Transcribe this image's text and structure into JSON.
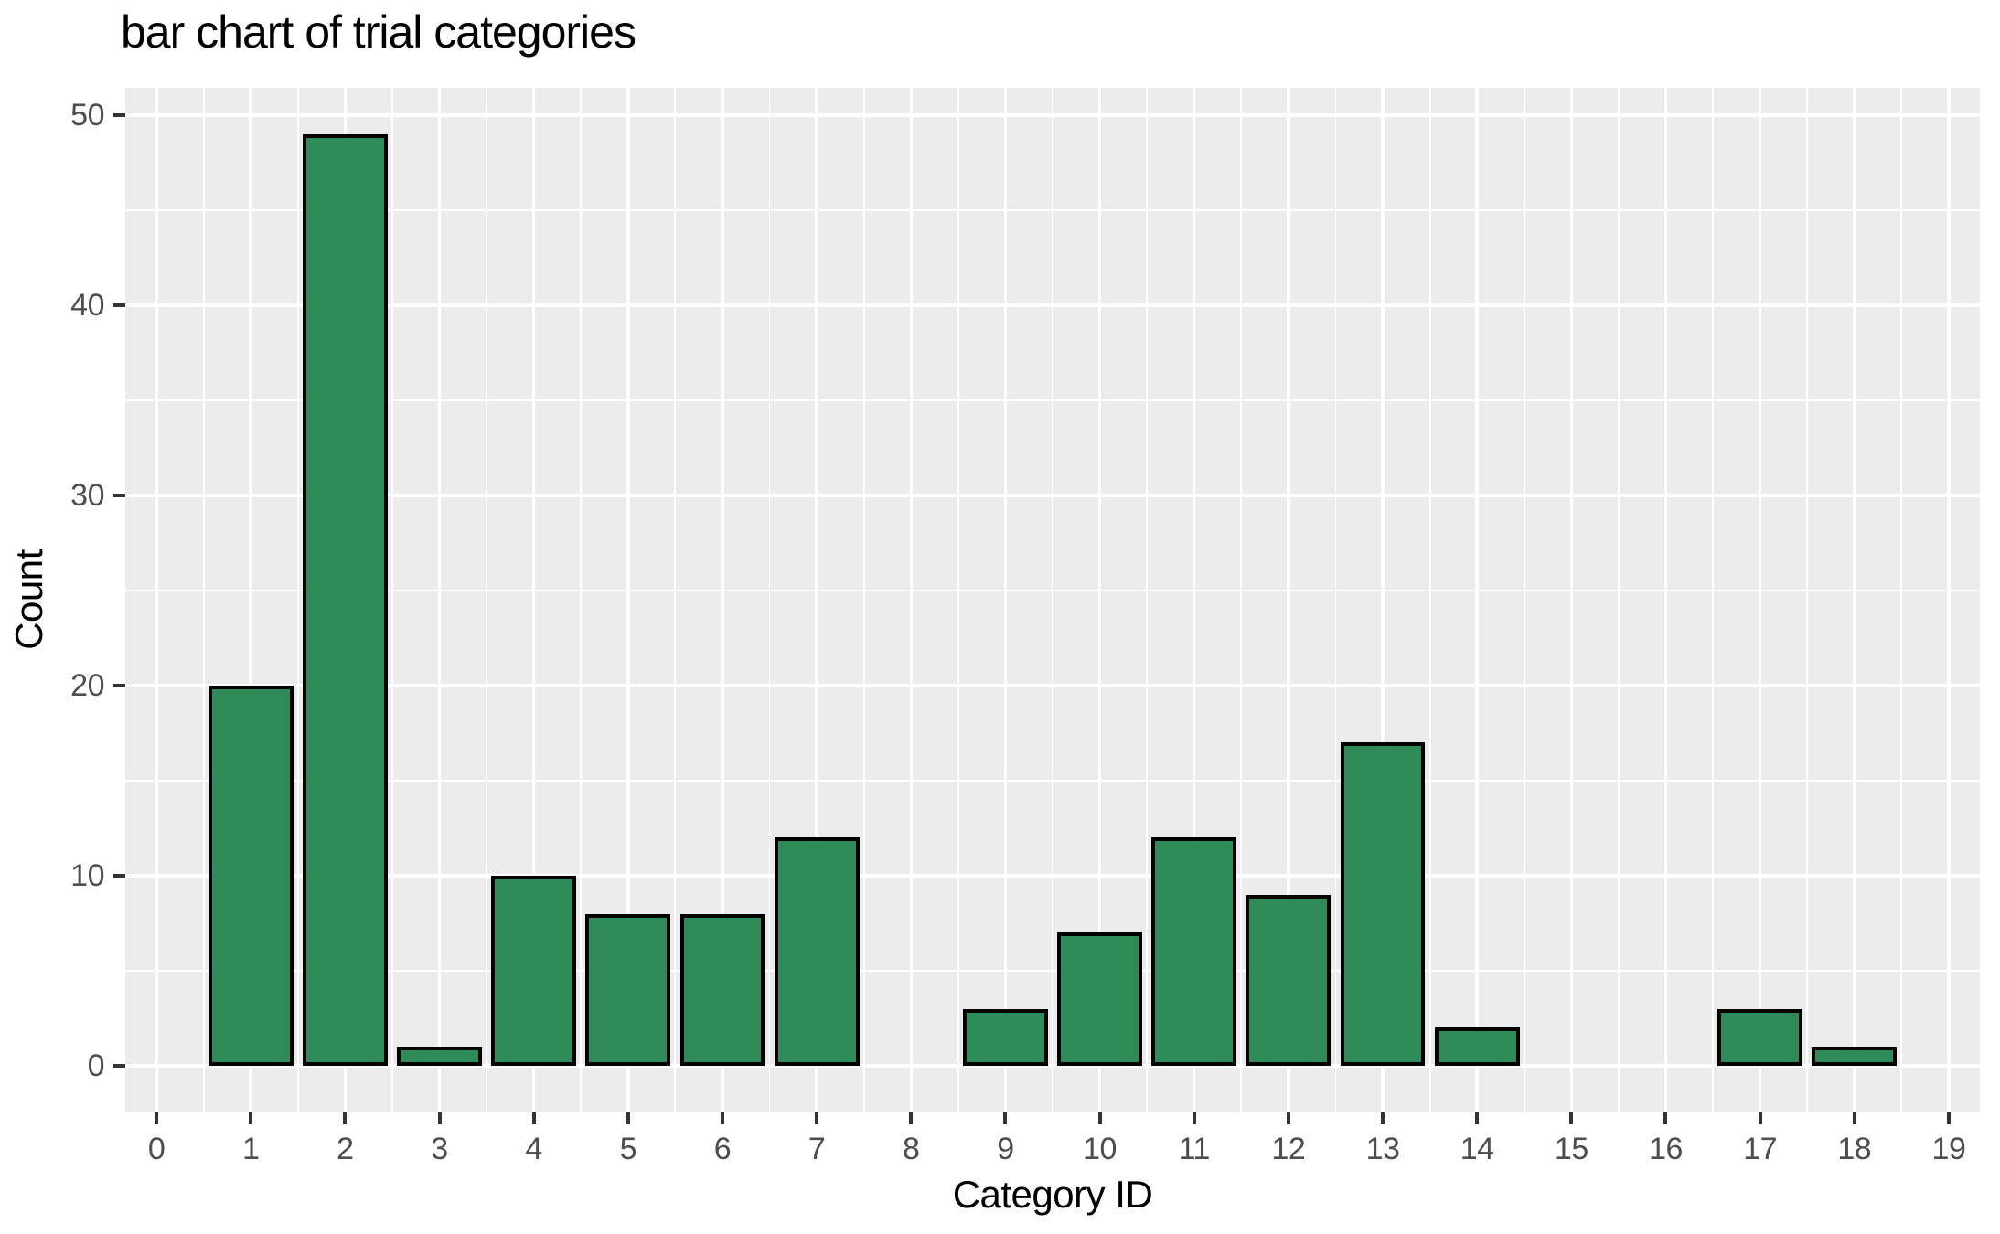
{
  "title": "bar chart of trial categories",
  "colors": {
    "bar_fill": "#2e8b57",
    "bar_stroke": "#000000",
    "panel_background": "#ebebeb",
    "gridline": "#ffffff",
    "tick_mark": "#333333",
    "tick_label": "#4d4d4d",
    "text": "#000000"
  },
  "chart_data": {
    "type": "bar",
    "title": "bar chart of trial categories",
    "xlabel": "Category ID",
    "ylabel": "Count",
    "categories": [
      0,
      1,
      2,
      3,
      4,
      5,
      6,
      7,
      8,
      9,
      10,
      11,
      12,
      13,
      14,
      15,
      16,
      17,
      18,
      19
    ],
    "values": [
      0,
      20,
      49,
      1,
      10,
      8,
      8,
      12,
      0,
      3,
      7,
      12,
      9,
      17,
      2,
      0,
      0,
      3,
      1,
      0
    ],
    "x_ticks": [
      0,
      1,
      2,
      3,
      4,
      5,
      6,
      7,
      8,
      9,
      10,
      11,
      12,
      13,
      14,
      15,
      16,
      17,
      18,
      19
    ],
    "y_major_ticks": [
      0,
      10,
      20,
      30,
      40,
      50
    ],
    "y_minor_ticks": [
      5,
      15,
      25,
      35,
      45
    ],
    "x_minor_positions": [
      0.5,
      1.5,
      2.5,
      3.5,
      4.5,
      5.5,
      6.5,
      7.5,
      8.5,
      9.5,
      10.5,
      11.5,
      12.5,
      13.5,
      14.5,
      15.5,
      16.5,
      17.5,
      18.5
    ],
    "xlim": [
      -0.33,
      19.33
    ],
    "ylim": [
      -2.45,
      51.45
    ],
    "bar_width": 0.9,
    "grid": "on",
    "legend": "none",
    "theme": "ggplot-gray"
  }
}
